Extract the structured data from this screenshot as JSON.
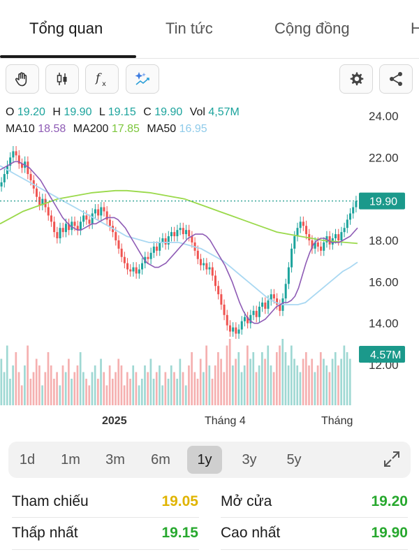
{
  "tabs": [
    {
      "label": "Tổng quan",
      "active": true
    },
    {
      "label": "Tin tức",
      "active": false
    },
    {
      "label": "Cộng đồng",
      "active": false
    },
    {
      "label": "H",
      "active": false
    }
  ],
  "toolbar": {
    "tools": [
      "hand-icon",
      "candlestick-icon",
      "function-icon",
      "ai-sparkle-icon"
    ],
    "right_tools": [
      "gear-icon",
      "share-icon"
    ]
  },
  "legend": {
    "o_label": "O",
    "o_value": "19.20",
    "h_label": "H",
    "h_value": "19.90",
    "l_label": "L",
    "l_value": "19.15",
    "c_label": "C",
    "c_value": "19.90",
    "vol_label": "Vol",
    "vol_value": "4,57M",
    "ma10_label": "MA10",
    "ma10_value": "18.58",
    "ma200_label": "MA200",
    "ma200_value": "17.85",
    "ma50_label": "MA50",
    "ma50_value": "16.95"
  },
  "colors": {
    "up": "#1ba39c",
    "down": "#ef5350",
    "ma10": "#8e5bb5",
    "ma200": "#9ad94a",
    "ma50": "#a9d8f2",
    "vol_up": "#9fd8d3",
    "vol_down": "#f5b0b0",
    "price_tag": "#1b998b",
    "o_value": "#1ba39c",
    "ma10_value": "#8e5bb5",
    "ma200_value": "#7cc63b",
    "ma50_value": "#8fcbea"
  },
  "chart_data": {
    "type": "candlestick",
    "y_ticks": [
      "24.00",
      "22.00",
      "20.00",
      "18.00",
      "16.00",
      "14.00",
      "12.00"
    ],
    "y_range": [
      11.0,
      24.6
    ],
    "x_labels": [
      "2025",
      "Tháng 4",
      "Tháng"
    ],
    "current_price_label": "19.90",
    "volume_label": "4.57M",
    "close_series": [
      20.8,
      21.2,
      21.6,
      22.0,
      22.3,
      22.1,
      21.7,
      21.5,
      21.8,
      21.2,
      20.9,
      20.5,
      20.1,
      19.7,
      20.0,
      19.6,
      19.2,
      18.9,
      18.4,
      18.1,
      18.6,
      18.4,
      18.8,
      18.5,
      18.9,
      18.7,
      18.5,
      18.9,
      19.2,
      19.0,
      18.8,
      19.3,
      19.5,
      19.2,
      19.6,
      19.4,
      19.0,
      18.7,
      18.4,
      18.0,
      17.6,
      17.2,
      16.9,
      16.6,
      16.5,
      16.7,
      16.4,
      16.6,
      16.9,
      17.2,
      17.1,
      17.4,
      17.7,
      17.5,
      17.9,
      18.1,
      17.8,
      18.2,
      18.4,
      18.2,
      18.5,
      18.6,
      18.3,
      18.5,
      18.2,
      17.9,
      17.5,
      17.1,
      16.8,
      16.9,
      16.6,
      16.7,
      16.3,
      15.8,
      15.4,
      14.9,
      14.4,
      13.9,
      13.6,
      13.8,
      13.5,
      13.7,
      14.1,
      14.3,
      14.0,
      14.4,
      14.6,
      14.3,
      14.8,
      15.0,
      14.7,
      15.1,
      15.4,
      15.2,
      14.9,
      14.6,
      15.2,
      15.9,
      16.7,
      17.6,
      18.2,
      18.6,
      18.9,
      18.7,
      18.3,
      18.0,
      17.6,
      17.9,
      17.7,
      17.5,
      17.9,
      18.2,
      17.8,
      18.1,
      18.3,
      18.0,
      18.4,
      18.6,
      19.0,
      19.3,
      19.6,
      19.9
    ],
    "ma10_series": [
      21.4,
      21.5,
      21.6,
      21.7,
      21.8,
      21.8,
      21.7,
      21.6,
      21.5,
      21.3,
      21.1,
      20.9,
      20.6,
      20.3,
      20.0,
      19.7,
      19.4,
      19.1,
      18.9,
      18.7,
      18.6,
      18.5,
      18.5,
      18.6,
      18.7,
      18.8,
      18.8,
      18.9,
      19.0,
      19.1,
      19.1,
      19.1,
      19.0,
      18.8,
      18.6,
      18.3,
      18.0,
      17.7,
      17.4,
      17.1,
      16.9,
      16.8,
      16.7,
      16.7,
      16.8,
      16.9,
      17.1,
      17.3,
      17.5,
      17.7,
      17.9,
      18.1,
      18.2,
      18.3,
      18.3,
      18.3,
      18.2,
      18.0,
      17.7,
      17.4,
      17.1,
      16.8,
      16.4,
      16.0,
      15.5,
      15.0,
      14.6,
      14.3,
      14.1,
      14.0,
      14.0,
      14.1,
      14.2,
      14.4,
      14.6,
      14.8,
      14.9,
      15.0,
      15.0,
      15.1,
      15.3,
      15.7,
      16.3,
      16.9,
      17.4,
      17.8,
      18.0,
      18.1,
      18.1,
      18.0,
      17.9,
      17.9,
      17.9,
      18.0,
      18.1,
      18.2,
      18.4,
      18.6
    ],
    "ma50_series": [
      21.6,
      21.4,
      21.2,
      21.0,
      20.8,
      20.6,
      20.4,
      20.2,
      20.0,
      19.8,
      19.6,
      19.4,
      19.2,
      19.0,
      18.8,
      18.6,
      18.4,
      18.2,
      18.1,
      18.0,
      17.9,
      17.9,
      17.9,
      17.9,
      17.9,
      17.8,
      17.7,
      17.6,
      17.4,
      17.2,
      17.0,
      16.7,
      16.4,
      16.1,
      15.8,
      15.5,
      15.2,
      15.0,
      14.9,
      14.9,
      14.9,
      15.0,
      15.3,
      15.6,
      15.9,
      16.2,
      16.5,
      16.7,
      16.95
    ],
    "ma200_series": [
      18.8,
      19.1,
      19.4,
      19.6,
      19.8,
      20.0,
      20.1,
      20.2,
      20.3,
      20.35,
      20.4,
      20.4,
      20.35,
      20.3,
      20.2,
      20.1,
      20.0,
      19.8,
      19.6,
      19.4,
      19.2,
      19.0,
      18.8,
      18.6,
      18.4,
      18.3,
      18.2,
      18.1,
      18.0,
      17.95,
      17.9,
      17.85
    ],
    "volume_series": [
      0.7,
      0.5,
      0.9,
      0.4,
      0.6,
      0.8,
      0.5,
      0.3,
      0.6,
      0.9,
      0.4,
      0.5,
      0.7,
      0.6,
      0.3,
      0.5,
      0.8,
      0.6,
      0.4,
      0.5,
      0.3,
      0.6,
      0.5,
      0.7,
      0.4,
      0.5,
      0.6,
      0.8,
      0.5,
      0.4,
      0.3,
      0.5,
      0.6,
      0.4,
      0.7,
      0.5,
      0.3,
      0.6,
      0.4,
      0.5,
      0.7,
      0.6,
      0.3,
      0.5,
      0.4,
      0.6,
      0.5,
      0.3,
      0.4,
      0.6,
      0.5,
      0.7,
      0.4,
      0.5,
      0.6,
      0.3,
      0.5,
      0.4,
      0.6,
      0.5,
      0.4,
      0.7,
      0.5,
      0.3,
      0.6,
      0.8,
      0.5,
      0.4,
      0.7,
      0.5,
      0.9,
      0.6,
      0.4,
      0.6,
      0.8,
      0.7,
      0.5,
      0.9,
      1.0,
      0.6,
      0.7,
      0.8,
      0.5,
      0.6,
      0.9,
      0.7,
      0.8,
      0.5,
      0.6,
      0.8,
      0.7,
      0.9,
      0.6,
      0.5,
      0.8,
      0.9,
      1.0,
      0.8,
      0.6,
      0.9,
      0.7,
      0.6,
      0.5,
      0.7,
      0.8,
      0.6,
      0.7,
      0.5,
      0.6,
      0.8,
      0.7,
      0.6,
      0.5,
      0.7,
      0.8,
      0.6,
      0.7,
      0.9,
      0.8,
      0.7
    ]
  },
  "ranges": [
    {
      "label": "1d",
      "active": false
    },
    {
      "label": "1m",
      "active": false
    },
    {
      "label": "3m",
      "active": false
    },
    {
      "label": "6m",
      "active": false
    },
    {
      "label": "1y",
      "active": true
    },
    {
      "label": "3y",
      "active": false
    },
    {
      "label": "5y",
      "active": false
    }
  ],
  "stats": {
    "tham_chieu_label": "Tham chiếu",
    "tham_chieu_value": "19.05",
    "tham_chieu_color": "#e0b400",
    "mo_cua_label": "Mở cửa",
    "mo_cua_value": "19.20",
    "mo_cua_color": "#27a82e",
    "thap_nhat_label": "Thấp nhất",
    "thap_nhat_value": "19.15",
    "thap_nhat_color": "#27a82e",
    "cao_nhat_label": "Cao nhất",
    "cao_nhat_value": "19.90",
    "cao_nhat_color": "#27a82e"
  }
}
